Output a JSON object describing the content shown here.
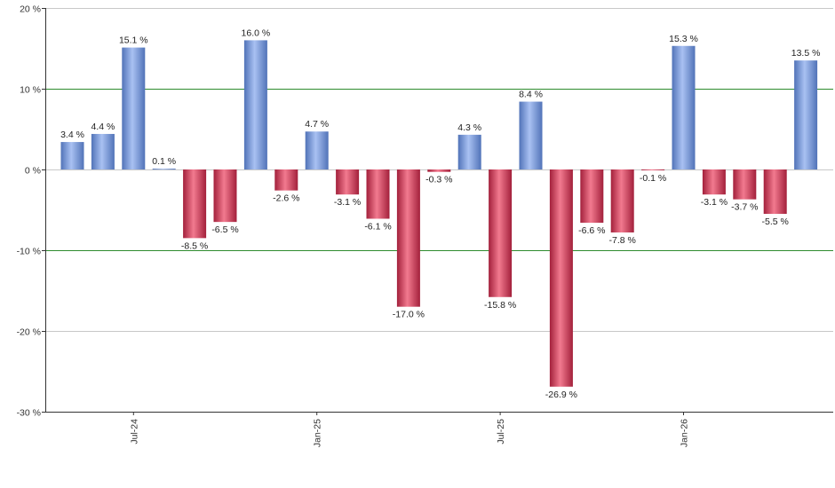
{
  "chart_data": {
    "type": "bar",
    "title": "",
    "xlabel": "",
    "ylabel": "",
    "ylim": [
      -30,
      20
    ],
    "y_ticks": [
      20,
      10,
      0,
      -10,
      -20,
      -30
    ],
    "y_tick_suffix": " %",
    "highlight_gridlines": [
      10,
      -10
    ],
    "values": [
      3.4,
      4.4,
      15.1,
      0.1,
      -8.5,
      -6.5,
      16.0,
      -2.6,
      4.7,
      -3.1,
      -6.1,
      -17.0,
      -0.3,
      4.3,
      -15.8,
      8.4,
      -26.9,
      -6.6,
      -7.8,
      -0.1,
      15.3,
      -3.1,
      -3.7,
      -5.5,
      13.5
    ],
    "value_labels": [
      "3.4 %",
      "4.4 %",
      "15.1 %",
      "0.1 %",
      "-8.5 %",
      "-6.5 %",
      "16.0 %",
      "-2.6 %",
      "4.7 %",
      "-3.1 %",
      "-6.1 %",
      "-17.0 %",
      "-0.3 %",
      "4.3 %",
      "-15.8 %",
      "8.4 %",
      "-26.9 %",
      "-6.6 %",
      "-7.8 %",
      "-0.1 %",
      "15.3 %",
      "-3.1 %",
      "-3.7 %",
      "-5.5 %",
      "13.5 %"
    ],
    "x_tick_labels": [
      {
        "index": 2,
        "label": "Jul-24"
      },
      {
        "index": 8,
        "label": "Jan-25"
      },
      {
        "index": 14,
        "label": "Jul-25"
      },
      {
        "index": 20,
        "label": "Jan-26"
      }
    ],
    "grid": true,
    "legend": "none",
    "colors": {
      "positive_light": "#a9c1f2",
      "positive_dark": "#5173b8",
      "negative_light": "#f27a8f",
      "negative_dark": "#a3203b",
      "gridline": "#c8c8c8",
      "highlight_gridline": "#2e8b2e",
      "axis": "#333333"
    }
  }
}
